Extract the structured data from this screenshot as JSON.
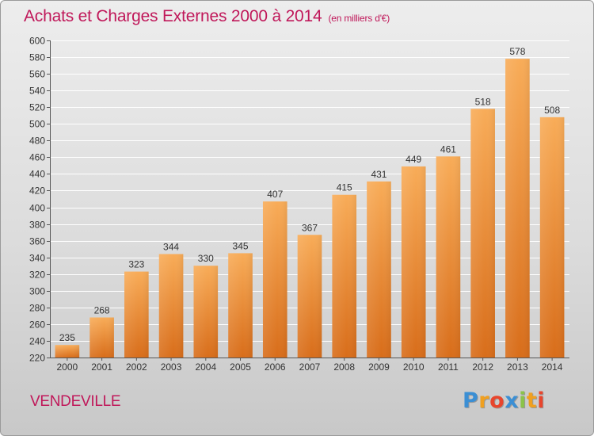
{
  "chart_data": {
    "type": "bar",
    "title": "Achats et Charges Externes 2000 à 2014",
    "subtitle": "(en milliers d'€)",
    "xlabel": "",
    "ylabel": "",
    "categories": [
      "2000",
      "2001",
      "2002",
      "2003",
      "2004",
      "2005",
      "2006",
      "2007",
      "2008",
      "2009",
      "2010",
      "2011",
      "2012",
      "2013",
      "2014"
    ],
    "values": [
      235,
      268,
      323,
      344,
      330,
      345,
      407,
      367,
      415,
      431,
      449,
      461,
      518,
      578,
      508
    ],
    "ylim": [
      220,
      600
    ],
    "yticks": [
      220,
      240,
      260,
      280,
      300,
      320,
      340,
      360,
      380,
      400,
      420,
      440,
      460,
      480,
      500,
      520,
      540,
      560,
      580,
      600
    ],
    "grid": true,
    "legend": "none",
    "colors": {
      "bar_top": "#f8ac58",
      "bar_bottom": "#d86d1a",
      "title": "#c0185a",
      "grid": "#ffffff"
    }
  },
  "location": "VENDEVILLE",
  "brand": {
    "letters": [
      "P",
      "r",
      "o",
      "x",
      "i",
      "t",
      "i"
    ],
    "colors": [
      "#3b8fd4",
      "#f0a020",
      "#e8452c",
      "#3b8fd4",
      "#8bc34a",
      "#f0a020",
      "#e8452c"
    ]
  }
}
